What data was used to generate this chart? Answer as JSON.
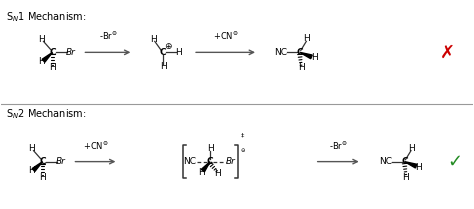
{
  "bg_color": "#ffffff",
  "line_color": "#333333",
  "text_color": "#000000",
  "red_x_color": "#cc0000",
  "green_check_color": "#228B22",
  "fig_width": 4.74,
  "fig_height": 2.09,
  "dpi": 100,
  "sn1_label": "S$_{N}$1 Mechanism:",
  "sn2_label": "S$_{N}$2 Mechanism:",
  "arrow1_label": "-Br$^{\\ominus}$",
  "arrow2_label": "+CN$^{\\ominus}$",
  "arrow3_label": "+CN$^{\\ominus}$",
  "arrow4_label": "-Br$^{\\ominus}$"
}
